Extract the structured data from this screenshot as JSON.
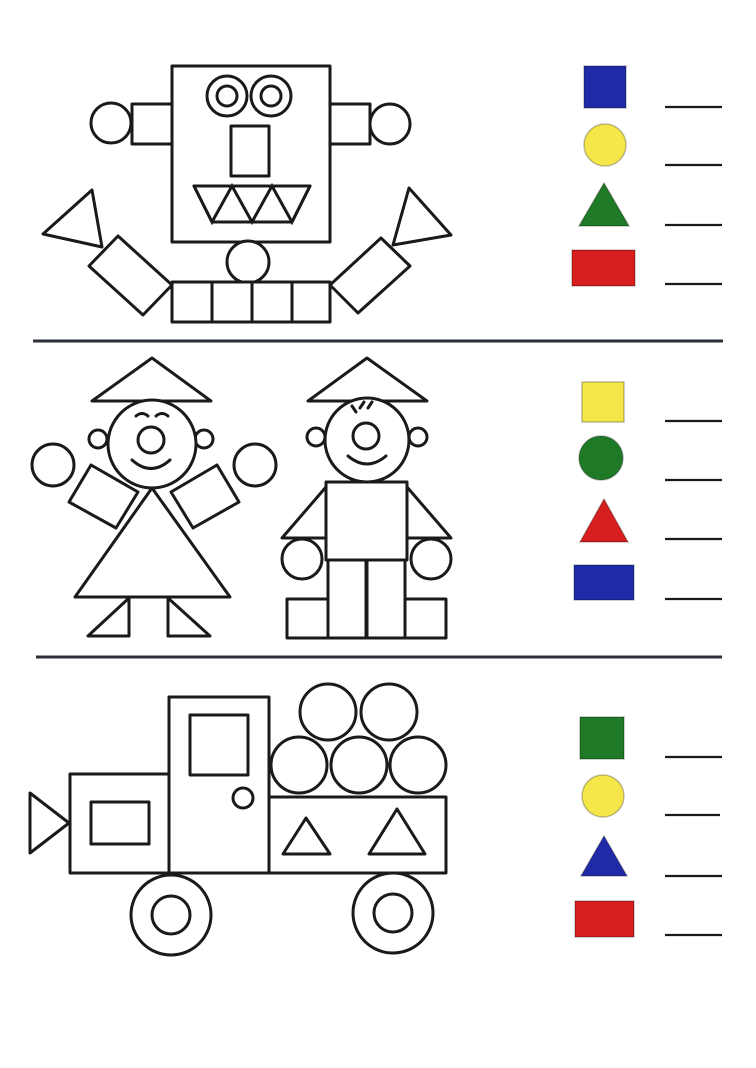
{
  "sections": [
    {
      "id": "robot",
      "legend": [
        {
          "shape": "square",
          "color": "#1f2aa6"
        },
        {
          "shape": "circle",
          "color": "#f5e64a"
        },
        {
          "shape": "triangle",
          "color": "#1e7a26"
        },
        {
          "shape": "rectangle",
          "color": "#d61e1e"
        }
      ]
    },
    {
      "id": "clowns",
      "legend": [
        {
          "shape": "square",
          "color": "#f5e64a"
        },
        {
          "shape": "circle",
          "color": "#1e7a26"
        },
        {
          "shape": "triangle",
          "color": "#d61e1e"
        },
        {
          "shape": "rectangle",
          "color": "#1f2aa6"
        }
      ]
    },
    {
      "id": "truck",
      "legend": [
        {
          "shape": "square",
          "color": "#1e7a26"
        },
        {
          "shape": "circle",
          "color": "#f5e64a"
        },
        {
          "shape": "triangle",
          "color": "#1f2aa6"
        },
        {
          "shape": "rectangle",
          "color": "#d61e1e"
        }
      ]
    }
  ]
}
